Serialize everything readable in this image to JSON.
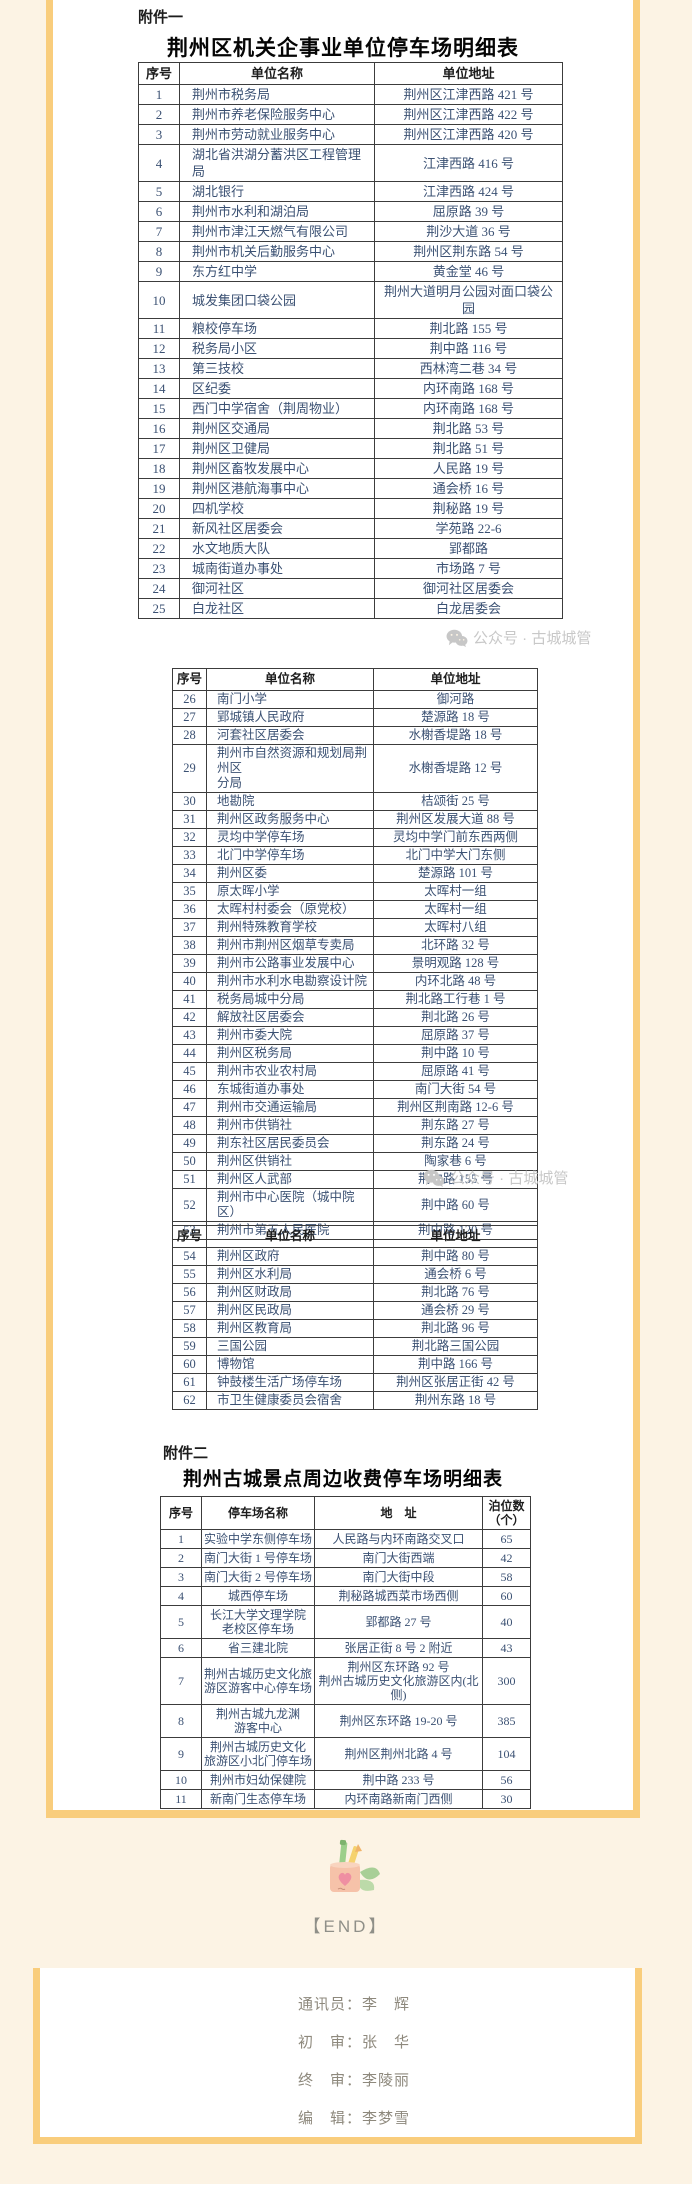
{
  "labels": {
    "attachment1": "附件一",
    "attachment2": "附件二",
    "table1_title": "荆州区机关企事业单位停车场明细表",
    "table4_title": "荆州古城景点周边收费停车场明细表",
    "watermark": "公众号 · 古城城管",
    "end": "【END】"
  },
  "colors": {
    "page_background": "#fcf3e4",
    "frame_orange": "#f9cd7c",
    "table_text": "#3b5173",
    "watermark_gray": "#c8c8c8",
    "credits_gray": "#8e897d"
  },
  "credits": [
    "通讯员：李　辉",
    "初　审：张　华",
    "终　审：李陵丽",
    "编　辑：李梦雪"
  ],
  "tables": [
    {
      "headers": [
        "序号",
        "单位名称",
        "单位地址"
      ],
      "rows": [
        [
          "1",
          "荆州市税务局",
          "荆州区江津西路 421 号"
        ],
        [
          "2",
          "荆州市养老保险服务中心",
          "荆州区江津西路 422 号"
        ],
        [
          "3",
          "荆州市劳动就业服务中心",
          "荆州区江津西路 420 号"
        ],
        [
          "4",
          "湖北省洪湖分蓄洪区工程管理局",
          "江津西路 416 号"
        ],
        [
          "5",
          "湖北银行",
          "江津西路 424 号"
        ],
        [
          "6",
          "荆州市水利和湖泊局",
          "屈原路 39 号"
        ],
        [
          "7",
          "荆州市津江天燃气有限公司",
          "荆沙大道 36 号"
        ],
        [
          "8",
          "荆州市机关后勤服务中心",
          "荆州区荆东路 54 号"
        ],
        [
          "9",
          "东方红中学",
          "黄金堂 46 号"
        ],
        [
          "10",
          "城发集团口袋公园",
          "荆州大道明月公园对面口袋公\n园"
        ],
        [
          "11",
          "粮校停车场",
          "荆北路 155 号"
        ],
        [
          "12",
          "税务局小区",
          "荆中路 116 号"
        ],
        [
          "13",
          "第三技校",
          "西林湾二巷 34 号"
        ],
        [
          "14",
          "区纪委",
          "内环南路 168 号"
        ],
        [
          "15",
          "西门中学宿舍（荆周物业）",
          "内环南路 168 号"
        ],
        [
          "16",
          "荆州区交通局",
          "荆北路 53 号"
        ],
        [
          "17",
          "荆州区卫健局",
          "荆北路 51 号"
        ],
        [
          "18",
          "荆州区畜牧发展中心",
          "人民路 19 号"
        ],
        [
          "19",
          "荆州区港航海事中心",
          "通会桥 16 号"
        ],
        [
          "20",
          "四机学校",
          "荆秘路 19 号"
        ],
        [
          "21",
          "新风社区居委会",
          "学苑路 22-6"
        ],
        [
          "22",
          "水文地质大队",
          "郢都路"
        ],
        [
          "23",
          "城南街道办事处",
          "市场路 7 号"
        ],
        [
          "24",
          "御河社区",
          "御河社区居委会"
        ],
        [
          "25",
          "白龙社区",
          "白龙居委会"
        ]
      ]
    },
    {
      "headers": [
        "序号",
        "单位名称",
        "单位地址"
      ],
      "rows": [
        [
          "26",
          "南门小学",
          "御河路"
        ],
        [
          "27",
          "郢城镇人民政府",
          "楚源路 18 号"
        ],
        [
          "28",
          "河套社区居委会",
          "水榭香堤路 18 号"
        ],
        [
          "29",
          "荆州市自然资源和规划局荆州区\n分局",
          "水榭香堤路 12 号"
        ],
        [
          "30",
          "地勘院",
          "桔颂街 25 号"
        ],
        [
          "31",
          "荆州区政务服务中心",
          "荆州区发展大道 88 号"
        ],
        [
          "32",
          "灵均中学停车场",
          "灵均中学门前东西两侧"
        ],
        [
          "33",
          "北门中学停车场",
          "北门中学大门东侧"
        ],
        [
          "34",
          "荆州区委",
          "楚源路 101 号"
        ],
        [
          "35",
          "原太晖小学",
          "太晖村一组"
        ],
        [
          "36",
          "太晖村村委会（原党校）",
          "太晖村一组"
        ],
        [
          "37",
          "荆州特殊教育学校",
          "太晖村八组"
        ],
        [
          "38",
          "荆州市荆州区烟草专卖局",
          "北环路 32 号"
        ],
        [
          "39",
          "荆州市公路事业发展中心",
          "景明观路 128 号"
        ],
        [
          "40",
          "荆州市水利水电勘察设计院",
          "内环北路 48 号"
        ],
        [
          "41",
          "税务局城中分局",
          "荆北路工行巷 1 号"
        ],
        [
          "42",
          "解放社区居委会",
          "荆北路 26 号"
        ],
        [
          "43",
          "荆州市委大院",
          "屈原路 37 号"
        ],
        [
          "44",
          "荆州区税务局",
          "荆中路 10 号"
        ],
        [
          "45",
          "荆州市农业农村局",
          "屈原路 41 号"
        ],
        [
          "46",
          "东城街道办事处",
          "南门大街 54 号"
        ],
        [
          "47",
          "荆州市交通运输局",
          "荆州区荆南路 12-6 号"
        ],
        [
          "48",
          "荆州市供销社",
          "荆东路 27 号"
        ],
        [
          "49",
          "荆东社区居民委员会",
          "荆东路 24 号"
        ],
        [
          "50",
          "荆州区供销社",
          "陶家巷 6 号"
        ],
        [
          "51",
          "荆州区人武部",
          "荆中路 155 号"
        ],
        [
          "52",
          "荆州市中心医院（城中院区）",
          "荆中路 60 号"
        ],
        [
          "53",
          "荆州市第五人民医院",
          "荆中路 120 号"
        ]
      ]
    },
    {
      "headers": [
        "序号",
        "单位名称",
        "单位地址"
      ],
      "rows": [
        [
          "54",
          "荆州区政府",
          "荆中路 80 号"
        ],
        [
          "55",
          "荆州区水利局",
          "通会桥 6 号"
        ],
        [
          "56",
          "荆州区财政局",
          "荆北路 76 号"
        ],
        [
          "57",
          "荆州区民政局",
          "通会桥 29 号"
        ],
        [
          "58",
          "荆州区教育局",
          "荆北路 96 号"
        ],
        [
          "59",
          "三国公园",
          "荆北路三国公园"
        ],
        [
          "60",
          "博物馆",
          "荆中路 166 号"
        ],
        [
          "61",
          "钟鼓楼生活广场停车场",
          "荆州区张居正街 42 号"
        ],
        [
          "62",
          "市卫生健康委员会宿舍",
          "荆州东路 18 号"
        ]
      ]
    },
    {
      "headers": [
        "序号",
        "停车场名称",
        "地　址",
        "泊位数\n（个）"
      ],
      "rows": [
        [
          "1",
          "实验中学东侧停车场",
          "人民路与内环南路交叉口",
          "65"
        ],
        [
          "2",
          "南门大街 1 号停车场",
          "南门大街西端",
          "42"
        ],
        [
          "3",
          "南门大街 2 号停车场",
          "南门大街中段",
          "58"
        ],
        [
          "4",
          "城西停车场",
          "荆秘路城西菜市场西侧",
          "60"
        ],
        [
          "5",
          "长江大学文理学院\n老校区停车场",
          "郢都路 27 号",
          "40"
        ],
        [
          "6",
          "省三建北院",
          "张居正街 8 号 2 附近",
          "43"
        ],
        [
          "7",
          "荆州古城历史文化旅\n游区游客中心停车场",
          "荆州区东环路 92 号\n荆州古城历史文化旅游区内(北侧)",
          "300"
        ],
        [
          "8",
          "荆州古城九龙渊\n游客中心",
          "荆州区东环路 19-20 号",
          "385"
        ],
        [
          "9",
          "荆州古城历史文化\n旅游区小北门停车场",
          "荆州区荆州北路 4 号",
          "104"
        ],
        [
          "10",
          "荆州市妇幼保健院",
          "荆中路 233 号",
          "56"
        ],
        [
          "11",
          "新南门生态停车场",
          "内环南路新南门西侧",
          "30"
        ]
      ]
    }
  ]
}
